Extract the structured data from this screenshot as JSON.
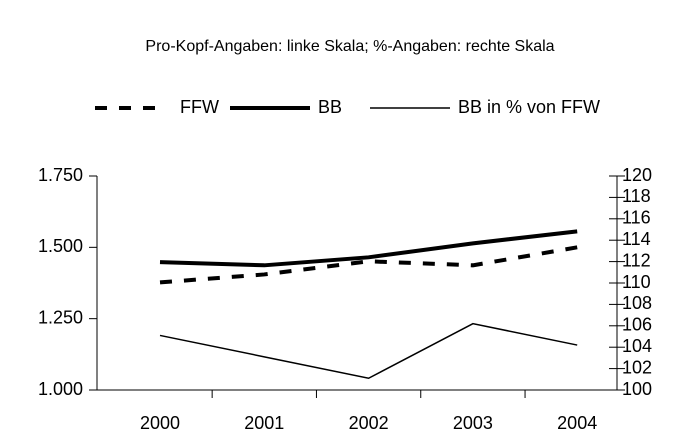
{
  "chart_data": {
    "type": "line",
    "title": "Pro-Kopf-Angaben: linke Skala; %-Angaben: rechte Skala",
    "categories": [
      "2000",
      "2001",
      "2002",
      "2003",
      "2004"
    ],
    "series": [
      {
        "name": "FFW",
        "color": "#000000",
        "linestyle": "dashed",
        "linewidth": 4,
        "values": [
          1377,
          1405,
          1451,
          1437,
          1500
        ]
      },
      {
        "name": "BB",
        "color": "#000000",
        "linestyle": "solid",
        "linewidth": 4,
        "values": [
          1448,
          1437,
          1465,
          1514,
          1556
        ]
      },
      {
        "name": "BB in % von FFW",
        "color": "#000000",
        "linestyle": "solid",
        "linewidth": 1.5,
        "axis": "y2",
        "values": [
          105.1,
          103.1,
          101.1,
          106.2,
          104.2
        ]
      }
    ],
    "ylim": [
      1000,
      1750
    ],
    "yticks": [
      {
        "value": 1000,
        "label": "1.000"
      },
      {
        "value": 1250,
        "label": "1.250"
      },
      {
        "value": 1500,
        "label": "1.500"
      },
      {
        "value": 1750,
        "label": "1.750"
      }
    ],
    "y2lim": [
      100,
      120
    ],
    "y2ticks": [
      100,
      102,
      104,
      106,
      108,
      110,
      112,
      114,
      116,
      118,
      120
    ],
    "grid": false
  }
}
